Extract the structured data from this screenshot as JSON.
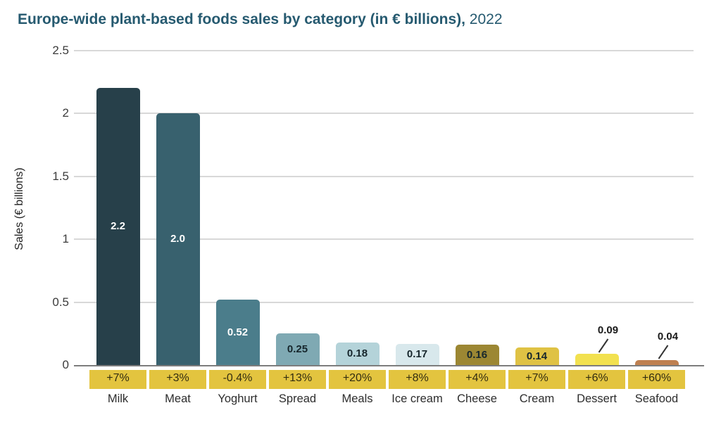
{
  "title": {
    "bold_part": "Europe-wide plant-based foods sales by category (in € billions),",
    "year_part": " 2022"
  },
  "colors": {
    "title": "#265a70",
    "gridline": "#d8d8d8",
    "baseline": "#7d7d7d",
    "band": "#e3c43f",
    "band_text": "#332d10",
    "category_text": "#2d2d2d",
    "tick_text": "#3c3c3c",
    "leader_line": "#333333"
  },
  "chart_data": {
    "type": "bar",
    "title": "Europe-wide plant-based foods sales by category (in € billions), 2022",
    "xlabel": "",
    "ylabel": "Sales (€ billions)",
    "ylim": [
      0,
      2.5
    ],
    "yticks": [
      0,
      0.5,
      1,
      1.5,
      2,
      2.5
    ],
    "ytick_labels": [
      "0",
      "0.5",
      "1",
      "1.5",
      "2",
      "2.5"
    ],
    "grid": "horizontal-only",
    "legend": "none",
    "categories": [
      "Milk",
      "Meat",
      "Yoghurt",
      "Spread",
      "Meals",
      "Ice cream",
      "Cheese",
      "Cream",
      "Dessert",
      "Seafood"
    ],
    "values": [
      2.2,
      2.0,
      0.52,
      0.25,
      0.18,
      0.17,
      0.16,
      0.14,
      0.09,
      0.04
    ],
    "value_labels": [
      "2.2",
      "2.0",
      "0.52",
      "0.25",
      "0.18",
      "0.17",
      "0.16",
      "0.14",
      "0.09",
      "0.04"
    ],
    "growth_labels": [
      "+7%",
      "+3%",
      "-0.4%",
      "+13%",
      "+20%",
      "+8%",
      "+4%",
      "+7%",
      "+6%",
      "+60%"
    ],
    "bar_colors": [
      "#27404a",
      "#38616e",
      "#4b7d8b",
      "#7fa9b3",
      "#b4d3d9",
      "#d8e8ec",
      "#9c8733",
      "#dfc244",
      "#f2e14f",
      "#bf8050"
    ],
    "value_label_colors": [
      "#ffffff",
      "#ffffff",
      "#ffffff",
      "#16262c",
      "#16262c",
      "#16262c",
      "#16262c",
      "#16262c",
      "#1a1a1a",
      "#1a1a1a"
    ],
    "value_label_placement": [
      "inside",
      "inside",
      "inside",
      "inside",
      "inside",
      "inside",
      "inside",
      "inside",
      "above",
      "above"
    ]
  }
}
